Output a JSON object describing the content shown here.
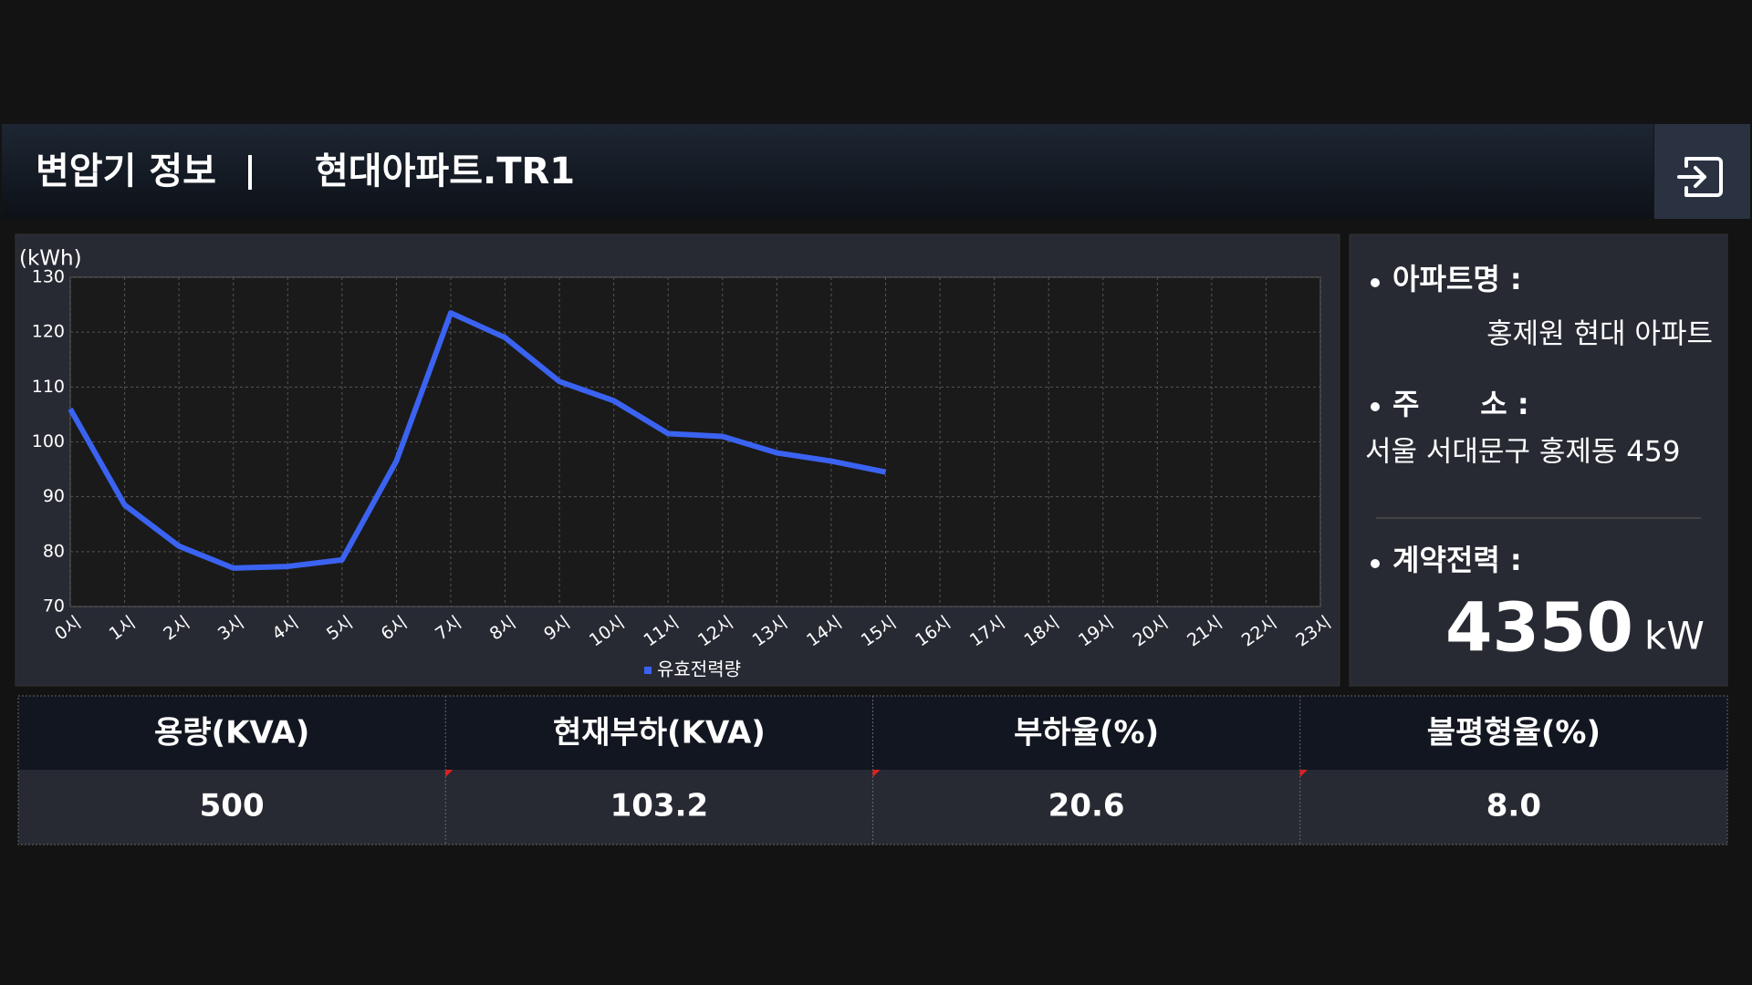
{
  "header": {
    "title": "변압기 정보",
    "name": "현대아파트.TR1"
  },
  "chart_data": {
    "type": "line",
    "y_label": "(kWh)",
    "categories": [
      "0시",
      "1시",
      "2시",
      "3시",
      "4시",
      "5시",
      "6시",
      "7시",
      "8시",
      "9시",
      "10시",
      "11시",
      "12시",
      "13시",
      "14시",
      "15시",
      "16시",
      "17시",
      "18시",
      "19시",
      "20시",
      "21시",
      "22시",
      "23시"
    ],
    "series": [
      {
        "name": "유효전력량",
        "color": "#3b63f2",
        "values": [
          106,
          88.5,
          81,
          77,
          77.3,
          78.5,
          96.5,
          123.5,
          119,
          111,
          107.5,
          101.5,
          101,
          98,
          96.5,
          94.5,
          null,
          null,
          null,
          null,
          null,
          null,
          null,
          null
        ]
      }
    ],
    "ylim": [
      70,
      130
    ],
    "yticks": [
      70,
      80,
      90,
      100,
      110,
      120,
      130
    ],
    "grid": true
  },
  "info": {
    "apt_label": "아파트명 :",
    "apt_value": "홍제원 현대 아파트",
    "addr_label": "주      소 :",
    "addr_value": "서울 서대문구 홍제동 459",
    "power_label": "계약전력 :",
    "power_value": "4350",
    "power_unit": "kW"
  },
  "table": {
    "headers": [
      "용량(KVA)",
      "현재부하(KVA)",
      "부하율(%)",
      "불평형율(%)"
    ],
    "values": [
      "500",
      "103.2",
      "20.6",
      "8.0"
    ]
  }
}
